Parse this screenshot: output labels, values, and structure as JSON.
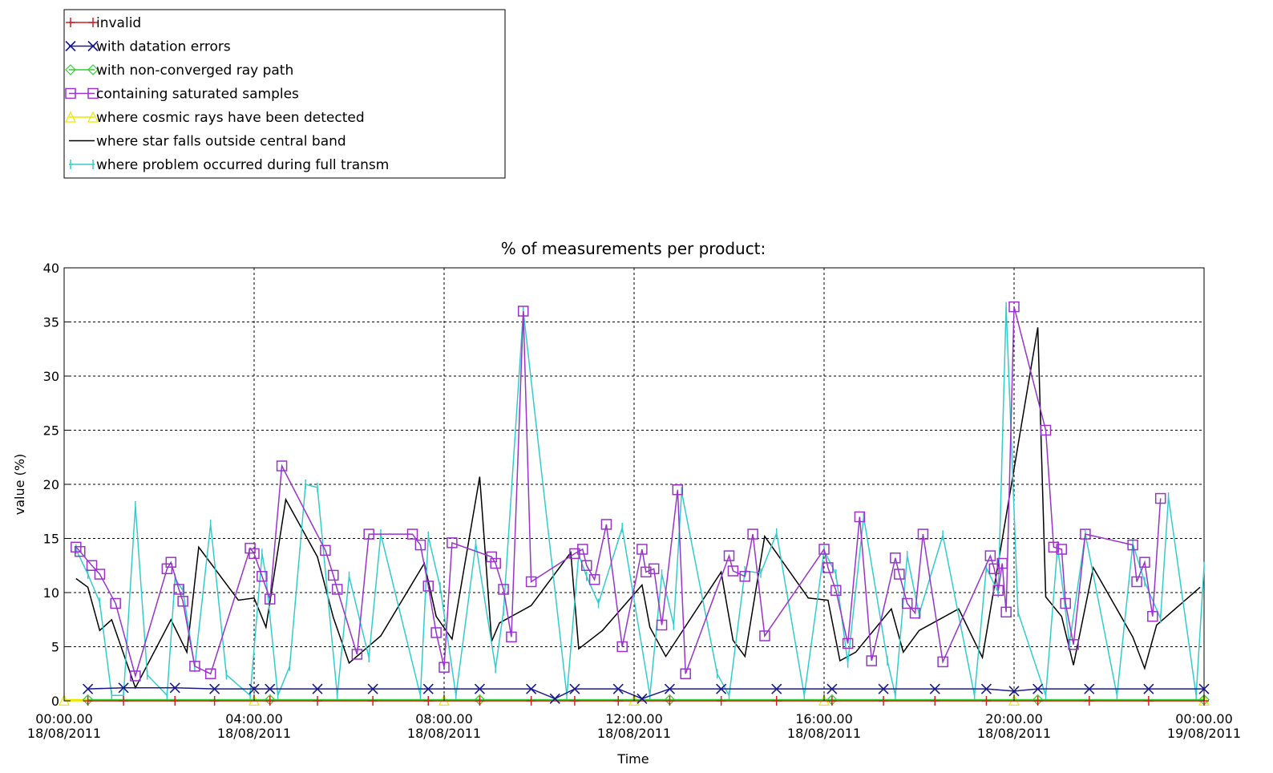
{
  "chart_data": {
    "type": "line",
    "title": "% of measurements per product:",
    "xlabel": "Time",
    "ylabel": "value (%)",
    "ylim": [
      0,
      40
    ],
    "yticks": [
      "0",
      "5",
      "10",
      "15",
      "20",
      "25",
      "30",
      "35",
      "40"
    ],
    "xlim": [
      "2011-08-18 00:00",
      "2011-08-19 00:00"
    ],
    "xticks": [
      {
        "time": "00:00.00",
        "date": "18/08/2011"
      },
      {
        "time": "04:00.00",
        "date": "18/08/2011"
      },
      {
        "time": "08:00.00",
        "date": "18/08/2011"
      },
      {
        "time": "12:00.00",
        "date": "18/08/2011"
      },
      {
        "time": "16:00.00",
        "date": "18/08/2011"
      },
      {
        "time": "20:00.00",
        "date": "18/08/2011"
      },
      {
        "time": "00:00.00",
        "date": "19/08/2011"
      }
    ],
    "grid": true,
    "legend_position": "top-left, above plot",
    "series": [
      {
        "name": "invalid",
        "color": "#cc2222",
        "marker": "plus",
        "x": [
          "00:30",
          "01:15",
          "02:20",
          "03:10",
          "04:20",
          "05:20",
          "06:30",
          "07:40",
          "08:45",
          "09:50",
          "10:45",
          "11:40",
          "12:45",
          "13:50",
          "15:00",
          "16:10",
          "17:15",
          "18:20",
          "19:25",
          "20:30",
          "21:35",
          "22:50",
          "00:00"
        ],
        "values": [
          0,
          0,
          0,
          0,
          0,
          0,
          0,
          0,
          0,
          0,
          0,
          0,
          0,
          0,
          0,
          0,
          0,
          0,
          0,
          0,
          0,
          0,
          0
        ]
      },
      {
        "name": "with datation errors",
        "color": "#1a1a8c",
        "marker": "x",
        "x": [
          "00:30",
          "01:15",
          "02:20",
          "03:10",
          "04:00",
          "04:20",
          "05:20",
          "06:30",
          "07:40",
          "08:45",
          "09:50",
          "10:20",
          "10:45",
          "11:40",
          "12:10",
          "12:45",
          "13:50",
          "15:00",
          "16:10",
          "17:15",
          "18:20",
          "19:25",
          "20:00",
          "20:30",
          "21:35",
          "22:50",
          "00:00"
        ],
        "values": [
          1.1,
          1.2,
          1.2,
          1.1,
          1.1,
          1.1,
          1.1,
          1.1,
          1.1,
          1.1,
          1.1,
          0.2,
          1.1,
          1.1,
          0.2,
          1.1,
          1.1,
          1.1,
          1.1,
          1.1,
          1.1,
          1.1,
          0.9,
          1.1,
          1.1,
          1.1,
          1.1
        ]
      },
      {
        "name": "with non-converged ray path",
        "color": "#33cc33",
        "marker": "diamond",
        "x": [
          "00:30",
          "04:20",
          "08:45",
          "12:45",
          "16:10",
          "20:30",
          "00:00"
        ],
        "values": [
          0.1,
          0.1,
          0.1,
          0.1,
          0.1,
          0.1,
          0.1
        ]
      },
      {
        "name": "containing saturated samples",
        "color": "#9933cc",
        "marker": "square",
        "x": [
          "00:15",
          "00:20",
          "00:35",
          "00:45",
          "01:05",
          "01:30",
          "02:10",
          "02:15",
          "02:25",
          "02:30",
          "02:45",
          "03:05",
          "03:55",
          "04:00",
          "04:10",
          "04:20",
          "04:35",
          "05:30",
          "05:40",
          "05:45",
          "06:10",
          "06:25",
          "07:20",
          "07:30",
          "07:40",
          "07:50",
          "08:00",
          "08:10",
          "09:00",
          "09:05",
          "09:15",
          "09:25",
          "09:40",
          "09:50",
          "10:45",
          "10:55",
          "11:00",
          "11:10",
          "11:25",
          "11:45",
          "12:10",
          "12:15",
          "12:25",
          "12:35",
          "12:55",
          "13:05",
          "14:00",
          "14:05",
          "14:20",
          "14:30",
          "14:45",
          "16:00",
          "16:05",
          "16:15",
          "16:30",
          "16:45",
          "17:00",
          "17:30",
          "17:35",
          "17:45",
          "17:55",
          "18:05",
          "18:30",
          "19:30",
          "19:35",
          "19:40",
          "19:45",
          "19:50",
          "20:00",
          "20:40",
          "20:50",
          "21:00",
          "21:05",
          "21:15",
          "21:30",
          "22:30",
          "22:35",
          "22:45",
          "22:55",
          "23:05"
        ],
        "values": [
          14.2,
          13.8,
          12.5,
          11.7,
          9.0,
          2.3,
          12.2,
          12.8,
          10.3,
          9.2,
          3.2,
          2.5,
          14.1,
          13.6,
          11.5,
          9.4,
          21.7,
          13.9,
          11.6,
          10.3,
          4.3,
          15.4,
          15.4,
          14.4,
          10.6,
          6.3,
          3.1,
          14.6,
          13.3,
          12.7,
          10.3,
          5.9,
          36.0,
          11.0,
          13.6,
          14.0,
          12.5,
          11.2,
          16.3,
          5.0,
          14.0,
          11.9,
          12.2,
          7.0,
          19.5,
          2.5,
          13.4,
          12.0,
          11.5,
          15.4,
          6.0,
          14.0,
          12.3,
          10.2,
          5.3,
          17.0,
          3.7,
          13.2,
          11.7,
          9.0,
          8.1,
          15.4,
          3.6,
          13.4,
          12.2,
          10.2,
          12.7,
          8.2,
          36.4,
          25.0,
          14.2,
          14.0,
          9.0,
          5.2,
          15.4,
          14.4,
          11.0,
          12.8,
          7.8,
          18.7
        ]
      },
      {
        "name": "where cosmic rays have been detected",
        "color": "#e8e800",
        "marker": "triangle",
        "x": [
          "00:00",
          "04:00",
          "08:00",
          "12:00",
          "16:00",
          "20:00",
          "00:00"
        ],
        "values": [
          0.05,
          0.05,
          0.05,
          0.05,
          0.05,
          0.05,
          0.05
        ]
      },
      {
        "name": "where star falls outside central band",
        "color": "#000000",
        "marker": "none",
        "x": [
          "00:15",
          "00:30",
          "00:45",
          "01:00",
          "01:30",
          "02:15",
          "02:35",
          "02:50",
          "03:40",
          "04:00",
          "04:15",
          "04:40",
          "05:20",
          "05:40",
          "06:00",
          "06:40",
          "07:35",
          "07:50",
          "08:10",
          "08:45",
          "09:00",
          "09:10",
          "09:50",
          "10:40",
          "10:50",
          "11:20",
          "12:10",
          "12:20",
          "12:40",
          "13:50",
          "14:05",
          "14:20",
          "14:45",
          "15:40",
          "16:05",
          "16:20",
          "16:40",
          "17:25",
          "17:40",
          "18:00",
          "18:50",
          "19:10",
          "19:20",
          "20:30",
          "20:40",
          "21:00",
          "21:15",
          "21:40",
          "22:30",
          "22:45",
          "23:00",
          "23:55"
        ],
        "values": [
          11.3,
          10.5,
          6.5,
          7.5,
          1.2,
          7.5,
          4.5,
          14.2,
          9.3,
          9.5,
          6.8,
          18.6,
          13.3,
          7.7,
          3.5,
          6.0,
          12.7,
          7.8,
          5.7,
          20.7,
          5.5,
          7.2,
          8.8,
          13.7,
          4.8,
          6.5,
          10.7,
          6.8,
          4.1,
          11.9,
          5.6,
          4.1,
          15.2,
          9.5,
          9.3,
          3.7,
          4.5,
          8.5,
          4.5,
          6.5,
          8.5,
          5.5,
          4.0,
          34.5,
          9.6,
          7.8,
          3.3,
          12.3,
          5.9,
          3.0,
          7.0,
          10.5
        ]
      },
      {
        "name": "where problem occurred during full transm",
        "color": "#33cccc",
        "marker": "vbar",
        "x": [
          "00:15",
          "00:30",
          "00:45",
          "01:00",
          "01:15",
          "01:30",
          "01:45",
          "02:10",
          "02:20",
          "02:30",
          "02:45",
          "03:05",
          "03:25",
          "03:55",
          "04:10",
          "04:15",
          "04:30",
          "04:45",
          "05:05",
          "05:20",
          "05:45",
          "06:00",
          "06:25",
          "06:40",
          "07:30",
          "07:40",
          "07:55",
          "08:15",
          "08:40",
          "09:05",
          "09:15",
          "09:40",
          "10:35",
          "10:50",
          "11:00",
          "11:15",
          "11:45",
          "12:20",
          "12:35",
          "12:50",
          "13:00",
          "13:45",
          "14:00",
          "14:20",
          "14:40",
          "15:00",
          "15:35",
          "16:00",
          "16:15",
          "16:30",
          "16:50",
          "17:20",
          "17:30",
          "17:45",
          "18:00",
          "18:30",
          "19:10",
          "19:25",
          "19:40",
          "19:50",
          "20:05",
          "20:40",
          "20:55",
          "21:10",
          "21:30",
          "22:10",
          "22:30",
          "22:45",
          "23:05",
          "23:15",
          "23:50",
          "00:00"
        ],
        "values": [
          14.0,
          11.7,
          9.1,
          0.5,
          0.5,
          18.0,
          2.4,
          0.5,
          11.3,
          10.2,
          3.1,
          16.3,
          2.4,
          0.5,
          13.6,
          11.5,
          0.5,
          3.2,
          20.0,
          19.7,
          0.5,
          11.5,
          4.0,
          15.4,
          0.5,
          15.2,
          10.5,
          0.5,
          14.5,
          3.0,
          8.3,
          36.0,
          0.5,
          13.5,
          11.5,
          9.0,
          16.0,
          0.5,
          11.7,
          7.0,
          19.3,
          2.5,
          0.5,
          12.0,
          11.8,
          15.5,
          0.5,
          13.9,
          11.7,
          3.5,
          17.0,
          3.7,
          0.5,
          13.4,
          8.0,
          15.3,
          0.5,
          12.3,
          10.0,
          36.4,
          8.2,
          0.5,
          14.3,
          5.3,
          15.4,
          0.5,
          14.5,
          11.0,
          7.6,
          18.8,
          0.5,
          12.4
        ]
      }
    ]
  }
}
